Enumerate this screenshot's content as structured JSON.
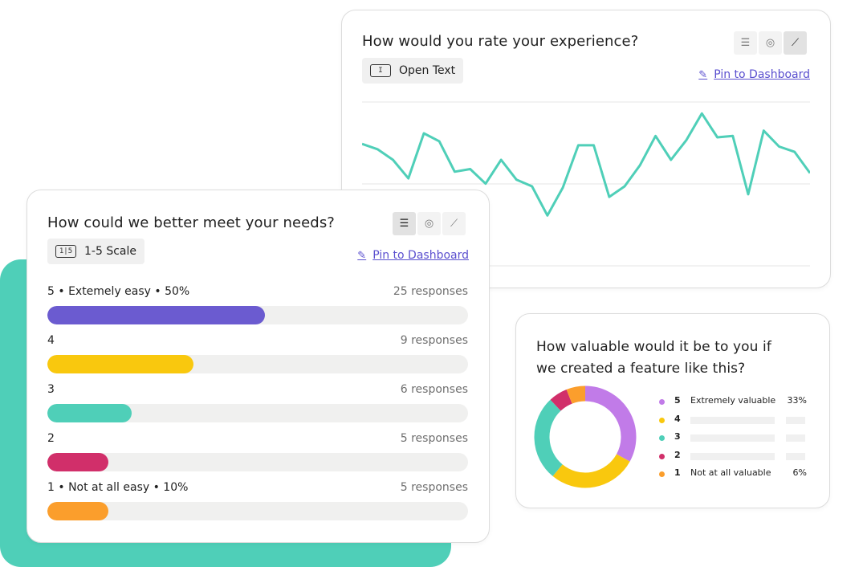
{
  "card_experience": {
    "title": "How would you rate your experience?",
    "type_label": "Open Text",
    "type_icon": "text-field-icon",
    "pin_label": "Pin to Dashboard",
    "view_icons": [
      "bar-list-icon",
      "chat-bubble-icon",
      "trend-line-icon"
    ],
    "active_view": "trend-line-icon",
    "line_color": "#4fcfb8"
  },
  "card_needs": {
    "title": "How could we better meet your needs?",
    "type_label": "1-5 Scale",
    "type_icon": "scale-icon",
    "type_icon_text": "1|5",
    "pin_label": "Pin to Dashboard",
    "view_icons": [
      "bar-list-icon",
      "chat-bubble-icon",
      "trend-line-icon"
    ],
    "active_view": "bar-list-icon",
    "rows": [
      {
        "label": "5 • Extemely easy • 50%",
        "count": "25 responses",
        "fraction": 0.517,
        "color": "#6b5bd0"
      },
      {
        "label": "4",
        "count": "9 responses",
        "fraction": 0.347,
        "color": "#f9c80e"
      },
      {
        "label": "3",
        "count": "6 responses",
        "fraction": 0.2,
        "color": "#4fcfb8"
      },
      {
        "label": "2",
        "count": "5 responses",
        "fraction": 0.145,
        "color": "#d12f6a"
      },
      {
        "label": "1 • Not at all easy • 10%",
        "count": "5 responses",
        "fraction": 0.145,
        "color": "#fb9e2c"
      }
    ]
  },
  "card_valuable": {
    "title_line1": "How valuable would it be to you if",
    "title_line2": "we created a feature like this?",
    "legend": [
      {
        "num": "5",
        "label": "Extremely valuable",
        "pct": "33%",
        "color": "#c17be8"
      },
      {
        "num": "4",
        "label": "",
        "pct": "",
        "color": "#f9c80e"
      },
      {
        "num": "3",
        "label": "",
        "pct": "",
        "color": "#4fcfb8"
      },
      {
        "num": "2",
        "label": "",
        "pct": "",
        "color": "#d12f6a"
      },
      {
        "num": "1",
        "label": "Not at all valuable",
        "pct": "6%",
        "color": "#fb9e2c"
      }
    ]
  },
  "chart_data": [
    {
      "type": "line",
      "title": "How would you rate your experience?",
      "x": [
        1,
        2,
        3,
        4,
        5,
        6,
        7,
        8,
        9,
        10,
        11,
        12,
        13,
        14,
        15,
        16,
        17,
        18,
        19,
        20,
        21,
        22,
        23,
        24,
        25,
        26,
        27,
        28,
        29,
        30
      ],
      "series": [
        {
          "values": [
            72,
            68,
            60,
            46,
            80,
            74,
            51,
            53,
            42,
            60,
            45,
            40,
            18,
            39,
            71,
            71,
            32,
            40,
            56,
            78,
            60,
            75,
            95,
            77,
            78,
            34,
            82,
            70,
            66,
            50
          ]
        }
      ],
      "ylim": [
        0,
        100
      ],
      "grid": true
    },
    {
      "type": "bar",
      "title": "How could we better meet your needs?",
      "categories": [
        "5",
        "4",
        "3",
        "2",
        "1"
      ],
      "values": [
        25,
        9,
        6,
        5,
        5
      ]
    },
    {
      "type": "pie",
      "title": "How valuable would it be to you if we created a feature like this?",
      "categories": [
        "5",
        "4",
        "3",
        "2",
        "1"
      ],
      "values": [
        33,
        28,
        27,
        6,
        6
      ]
    }
  ]
}
